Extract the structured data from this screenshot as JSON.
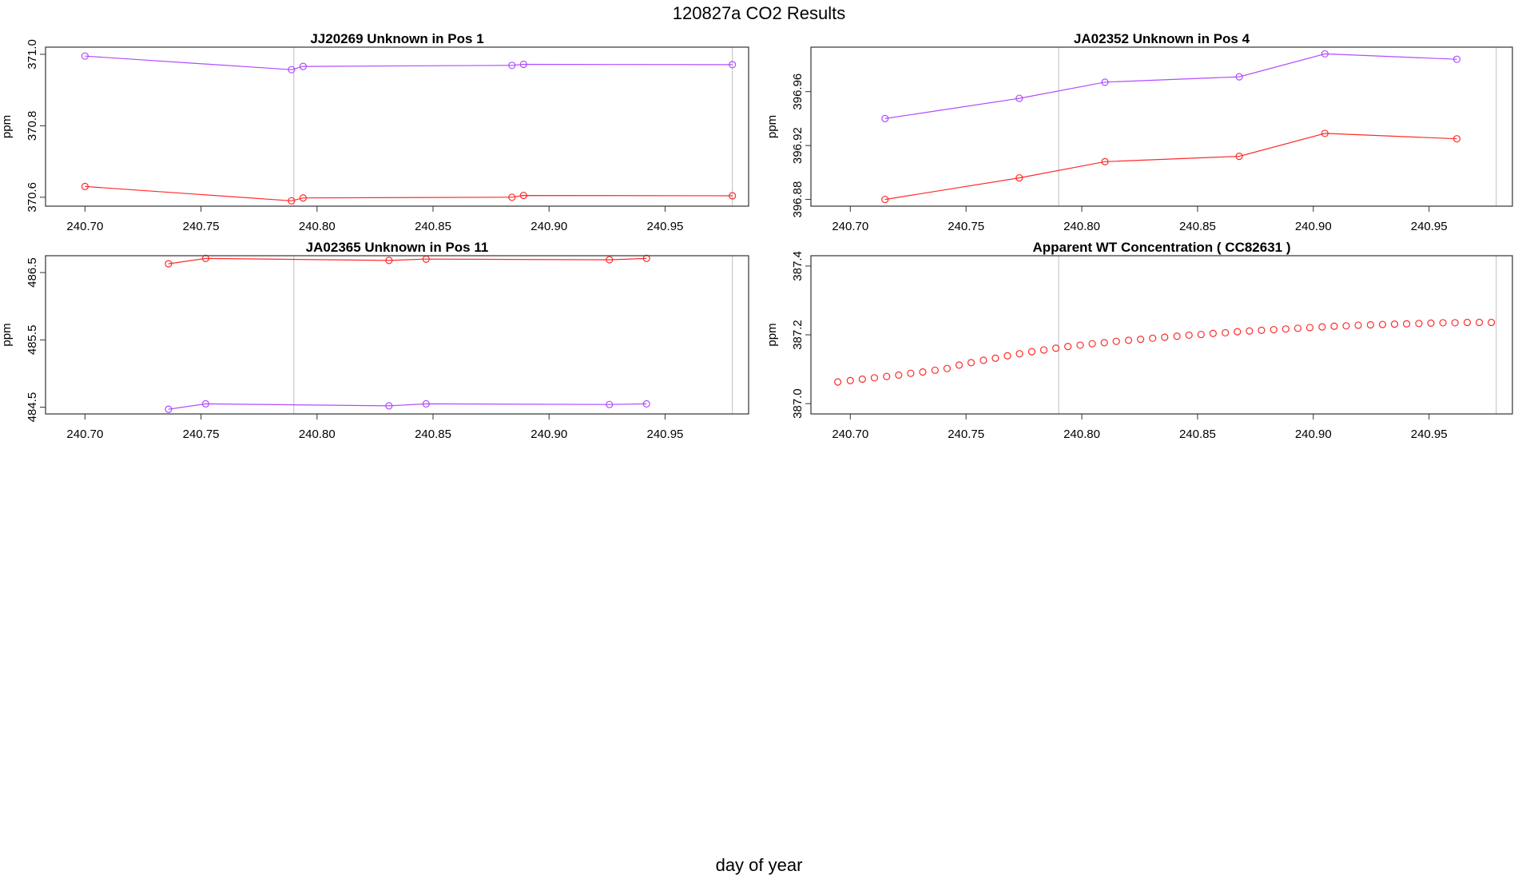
{
  "title": "120827a  CO2 Results",
  "xlabel": "day of year",
  "colors": {
    "red": "#ff2a2a",
    "purple": "#b04cff",
    "grid": "#c8c8c8",
    "axis": "#333333"
  },
  "chart_data": [
    {
      "type": "line",
      "title": "JJ20269    Unknown in Pos 1",
      "ylabel": "ppm",
      "xlim": [
        240.683,
        240.986
      ],
      "ylim": [
        370.575,
        371.02
      ],
      "xticks": [
        "240.70",
        "240.75",
        "240.80",
        "240.85",
        "240.90",
        "240.95"
      ],
      "yticks": [
        "370.6",
        "370.8",
        "371.0"
      ],
      "vlines": [
        240.79,
        240.979
      ],
      "series": [
        {
          "color": "#b04cff",
          "x": [
            240.7,
            240.789,
            240.794,
            240.884,
            240.889,
            240.979
          ],
          "y": [
            370.995,
            370.957,
            370.966,
            370.969,
            370.972,
            370.971
          ]
        },
        {
          "color": "#ff2a2a",
          "x": [
            240.7,
            240.789,
            240.794,
            240.884,
            240.889,
            240.979
          ],
          "y": [
            370.63,
            370.59,
            370.598,
            370.6,
            370.605,
            370.604
          ]
        }
      ]
    },
    {
      "type": "line",
      "title": "JA02352    Unknown in Pos 4",
      "ylabel": "ppm",
      "xlim": [
        240.683,
        240.986
      ],
      "ylim": [
        396.875,
        396.993
      ],
      "xticks": [
        "240.70",
        "240.75",
        "240.80",
        "240.85",
        "240.90",
        "240.95"
      ],
      "yticks": [
        "396.88",
        "396.92",
        "396.96"
      ],
      "vlines": [
        240.79,
        240.979
      ],
      "series": [
        {
          "color": "#b04cff",
          "x": [
            240.715,
            240.773,
            240.81,
            240.868,
            240.905,
            240.962
          ],
          "y": [
            396.94,
            396.955,
            396.967,
            396.971,
            396.988,
            396.984
          ]
        },
        {
          "color": "#ff2a2a",
          "x": [
            240.715,
            240.773,
            240.81,
            240.868,
            240.905,
            240.962
          ],
          "y": [
            396.88,
            396.896,
            396.908,
            396.912,
            396.929,
            396.925
          ]
        }
      ]
    },
    {
      "type": "line",
      "title": "JA02365    Unknown in Pos 11",
      "ylabel": "ppm",
      "xlim": [
        240.683,
        240.986
      ],
      "ylim": [
        484.4,
        486.75
      ],
      "xticks": [
        "240.70",
        "240.75",
        "240.80",
        "240.85",
        "240.90",
        "240.95"
      ],
      "yticks": [
        "484.5",
        "485.5",
        "486.5"
      ],
      "vlines": [
        240.79,
        240.979
      ],
      "series": [
        {
          "color": "#ff2a2a",
          "x": [
            240.736,
            240.752,
            240.831,
            240.847,
            240.926,
            240.942
          ],
          "y": [
            486.63,
            486.71,
            486.68,
            486.7,
            486.69,
            486.71
          ]
        },
        {
          "color": "#b04cff",
          "x": [
            240.736,
            240.752,
            240.831,
            240.847,
            240.926,
            240.942
          ],
          "y": [
            484.47,
            484.55,
            484.52,
            484.55,
            484.54,
            484.55
          ]
        }
      ]
    },
    {
      "type": "scatter",
      "title": "Apparent WT Concentration ( CC82631 )",
      "ylabel": "ppm",
      "xlim": [
        240.683,
        240.986
      ],
      "ylim": [
        386.97,
        387.43
      ],
      "xticks": [
        "240.70",
        "240.75",
        "240.80",
        "240.85",
        "240.90",
        "240.95"
      ],
      "yticks": [
        "387.0",
        "387.2",
        "387.4"
      ],
      "vlines": [
        240.79,
        240.979
      ],
      "series": [
        {
          "color": "#ff2a2a",
          "x": [
            240.6946,
            240.7,
            240.7052,
            240.7104,
            240.7157,
            240.7209,
            240.7261,
            240.7313,
            240.7366,
            240.7418,
            240.747,
            240.7522,
            240.7575,
            240.7627,
            240.7679,
            240.7731,
            240.7784,
            240.7836,
            240.7888,
            240.794,
            240.7993,
            240.8045,
            240.8097,
            240.8149,
            240.8202,
            240.8254,
            240.8306,
            240.8358,
            240.8411,
            240.8463,
            240.8515,
            240.8567,
            240.862,
            240.8672,
            240.8724,
            240.8776,
            240.8829,
            240.8881,
            240.8933,
            240.8985,
            240.9038,
            240.909,
            240.9142,
            240.9194,
            240.9247,
            240.9299,
            240.9351,
            240.9403,
            240.9456,
            240.9508,
            240.956,
            240.9612,
            240.9665,
            240.9717,
            240.9769
          ],
          "y": [
            387.063,
            387.067,
            387.071,
            387.075,
            387.079,
            387.083,
            387.088,
            387.092,
            387.097,
            387.102,
            387.112,
            387.119,
            387.126,
            387.132,
            387.139,
            387.145,
            387.151,
            387.156,
            387.161,
            387.166,
            387.17,
            387.174,
            387.177,
            387.181,
            387.184,
            387.187,
            387.19,
            387.193,
            387.196,
            387.199,
            387.201,
            387.204,
            387.206,
            387.209,
            387.211,
            387.213,
            387.215,
            387.217,
            387.219,
            387.221,
            387.223,
            387.225,
            387.226,
            387.228,
            387.229,
            387.23,
            387.231,
            387.232,
            387.233,
            387.234,
            387.235,
            387.235,
            387.236,
            387.236,
            387.236
          ]
        }
      ]
    }
  ]
}
